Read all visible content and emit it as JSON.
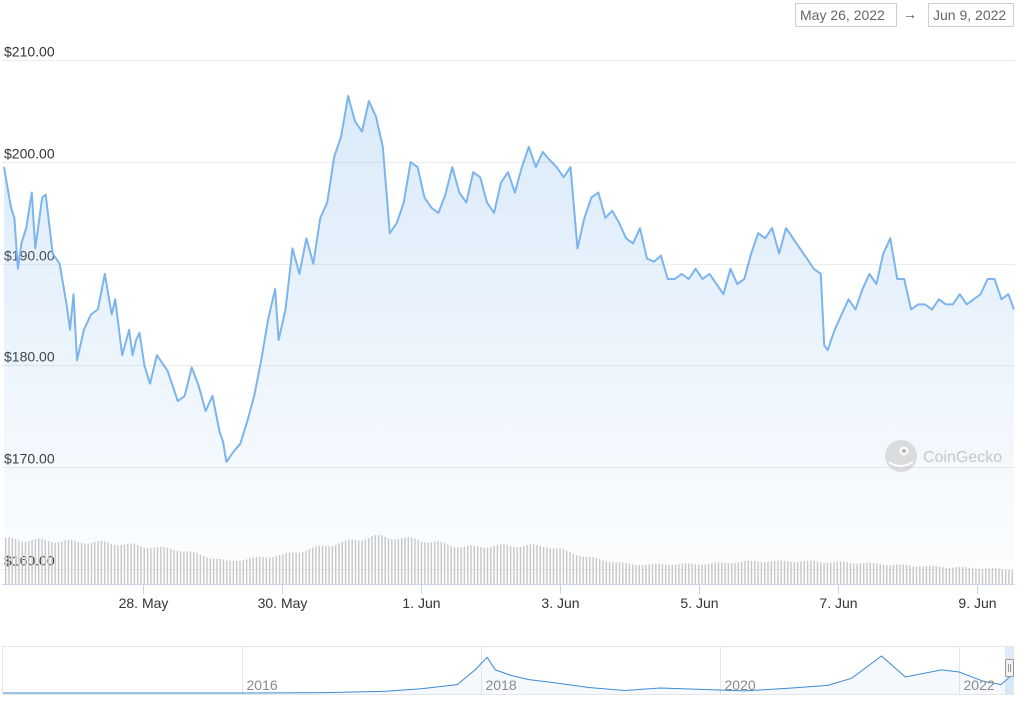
{
  "range": {
    "from": "May 26, 2022",
    "arrow": "→",
    "to": "Jun 9, 2022"
  },
  "watermark": "CoinGecko",
  "chart_data": {
    "type": "line",
    "series_color": "#7cb5ec",
    "y_ticks": [
      "$210.00",
      "$200.00",
      "$190.00",
      "$180.00",
      "$170.00",
      "$160.00"
    ],
    "y_tick_values": [
      210,
      200,
      190,
      180,
      170,
      160
    ],
    "ylim": [
      158.5,
      212
    ],
    "x_ticks": [
      "28. May",
      "30. May",
      "1. Jun",
      "3. Jun",
      "5. Jun",
      "7. Jun",
      "9. Jun"
    ],
    "x_tick_days": [
      2,
      4,
      6,
      8,
      10,
      12,
      14
    ],
    "x_range_days": [
      0.0,
      14.53
    ],
    "price_points": [
      [
        0.0,
        199.5
      ],
      [
        0.1,
        195.5
      ],
      [
        0.15,
        194.5
      ],
      [
        0.2,
        189.5
      ],
      [
        0.25,
        192.0
      ],
      [
        0.32,
        193.5
      ],
      [
        0.4,
        197.0
      ],
      [
        0.45,
        191.5
      ],
      [
        0.55,
        196.5
      ],
      [
        0.6,
        196.8
      ],
      [
        0.7,
        191.0
      ],
      [
        0.8,
        190.0
      ],
      [
        0.9,
        186.0
      ],
      [
        0.95,
        183.5
      ],
      [
        1.0,
        187.0
      ],
      [
        1.05,
        180.5
      ],
      [
        1.15,
        183.5
      ],
      [
        1.25,
        185.0
      ],
      [
        1.35,
        185.5
      ],
      [
        1.45,
        189.0
      ],
      [
        1.55,
        185.0
      ],
      [
        1.6,
        186.5
      ],
      [
        1.7,
        181.0
      ],
      [
        1.8,
        183.5
      ],
      [
        1.85,
        181.0
      ],
      [
        1.9,
        182.5
      ],
      [
        1.95,
        183.2
      ],
      [
        2.02,
        180.0
      ],
      [
        2.1,
        178.2
      ],
      [
        2.2,
        181.0
      ],
      [
        2.35,
        179.5
      ],
      [
        2.5,
        176.5
      ],
      [
        2.6,
        177.0
      ],
      [
        2.7,
        179.8
      ],
      [
        2.8,
        178.0
      ],
      [
        2.9,
        175.5
      ],
      [
        3.0,
        177.0
      ],
      [
        3.1,
        173.5
      ],
      [
        3.15,
        172.5
      ],
      [
        3.2,
        170.5
      ],
      [
        3.3,
        171.5
      ],
      [
        3.4,
        172.3
      ],
      [
        3.5,
        174.5
      ],
      [
        3.6,
        177.0
      ],
      [
        3.7,
        180.5
      ],
      [
        3.8,
        184.5
      ],
      [
        3.9,
        187.5
      ],
      [
        3.95,
        182.5
      ],
      [
        4.05,
        185.5
      ],
      [
        4.15,
        191.5
      ],
      [
        4.25,
        189.0
      ],
      [
        4.35,
        192.5
      ],
      [
        4.45,
        190.0
      ],
      [
        4.55,
        194.5
      ],
      [
        4.65,
        196.0
      ],
      [
        4.75,
        200.5
      ],
      [
        4.85,
        202.5
      ],
      [
        4.95,
        206.5
      ],
      [
        5.05,
        204.0
      ],
      [
        5.15,
        203.0
      ],
      [
        5.25,
        206.0
      ],
      [
        5.35,
        204.5
      ],
      [
        5.45,
        201.5
      ],
      [
        5.55,
        193.0
      ],
      [
        5.65,
        194.0
      ],
      [
        5.75,
        196.0
      ],
      [
        5.85,
        200.0
      ],
      [
        5.95,
        199.5
      ],
      [
        6.05,
        196.5
      ],
      [
        6.15,
        195.5
      ],
      [
        6.25,
        195.0
      ],
      [
        6.35,
        196.8
      ],
      [
        6.45,
        199.5
      ],
      [
        6.55,
        197.0
      ],
      [
        6.65,
        196.0
      ],
      [
        6.75,
        199.0
      ],
      [
        6.85,
        198.5
      ],
      [
        6.95,
        196.0
      ],
      [
        7.05,
        195.0
      ],
      [
        7.15,
        198.0
      ],
      [
        7.25,
        199.0
      ],
      [
        7.35,
        197.0
      ],
      [
        7.45,
        199.5
      ],
      [
        7.55,
        201.5
      ],
      [
        7.65,
        199.5
      ],
      [
        7.75,
        201.0
      ],
      [
        7.85,
        200.2
      ],
      [
        7.95,
        199.5
      ],
      [
        8.05,
        198.5
      ],
      [
        8.15,
        199.5
      ],
      [
        8.25,
        191.5
      ],
      [
        8.35,
        194.5
      ],
      [
        8.45,
        196.5
      ],
      [
        8.55,
        197.0
      ],
      [
        8.65,
        194.5
      ],
      [
        8.75,
        195.2
      ],
      [
        8.85,
        194.0
      ],
      [
        8.95,
        192.5
      ],
      [
        9.05,
        192.0
      ],
      [
        9.15,
        193.5
      ],
      [
        9.25,
        190.5
      ],
      [
        9.35,
        190.2
      ],
      [
        9.45,
        190.8
      ],
      [
        9.55,
        188.5
      ],
      [
        9.65,
        188.5
      ],
      [
        9.75,
        189.0
      ],
      [
        9.85,
        188.5
      ],
      [
        9.95,
        189.5
      ],
      [
        10.05,
        188.5
      ],
      [
        10.15,
        189.0
      ],
      [
        10.25,
        188.0
      ],
      [
        10.35,
        187.0
      ],
      [
        10.45,
        189.5
      ],
      [
        10.55,
        188.0
      ],
      [
        10.65,
        188.5
      ],
      [
        10.75,
        191.0
      ],
      [
        10.85,
        193.0
      ],
      [
        10.95,
        192.5
      ],
      [
        11.05,
        193.5
      ],
      [
        11.15,
        191.0
      ],
      [
        11.25,
        193.5
      ],
      [
        11.35,
        192.5
      ],
      [
        11.45,
        191.5
      ],
      [
        11.55,
        190.5
      ],
      [
        11.65,
        189.5
      ],
      [
        11.75,
        189.0
      ],
      [
        11.8,
        182.0
      ],
      [
        11.85,
        181.5
      ],
      [
        11.95,
        183.5
      ],
      [
        12.05,
        185.0
      ],
      [
        12.15,
        186.5
      ],
      [
        12.25,
        185.5
      ],
      [
        12.35,
        187.5
      ],
      [
        12.45,
        189.0
      ],
      [
        12.55,
        188.0
      ],
      [
        12.65,
        191.0
      ],
      [
        12.75,
        192.5
      ],
      [
        12.85,
        188.5
      ],
      [
        12.95,
        188.5
      ],
      [
        13.05,
        185.5
      ],
      [
        13.15,
        186.0
      ],
      [
        13.25,
        186.0
      ],
      [
        13.35,
        185.5
      ],
      [
        13.45,
        186.5
      ],
      [
        13.55,
        186.0
      ],
      [
        13.65,
        186.0
      ],
      [
        13.75,
        187.0
      ],
      [
        13.85,
        186.0
      ],
      [
        13.95,
        186.5
      ],
      [
        14.05,
        187.0
      ],
      [
        14.15,
        188.5
      ],
      [
        14.25,
        188.5
      ],
      [
        14.35,
        186.5
      ],
      [
        14.45,
        187.0
      ],
      [
        14.53,
        185.5
      ]
    ],
    "volume_level": {
      "comment_free": true,
      "points": [
        [
          0.0,
          0.85
        ],
        [
          1.5,
          0.78
        ],
        [
          2.5,
          0.65
        ],
        [
          3.2,
          0.43
        ],
        [
          4.0,
          0.55
        ],
        [
          4.6,
          0.72
        ],
        [
          5.3,
          0.9
        ],
        [
          5.9,
          0.85
        ],
        [
          6.6,
          0.7
        ],
        [
          7.2,
          0.73
        ],
        [
          7.8,
          0.72
        ],
        [
          8.4,
          0.5
        ],
        [
          9.0,
          0.37
        ],
        [
          10.0,
          0.38
        ],
        [
          10.8,
          0.43
        ],
        [
          11.5,
          0.43
        ],
        [
          12.3,
          0.4
        ],
        [
          13.0,
          0.35
        ],
        [
          14.0,
          0.3
        ],
        [
          14.53,
          0.27
        ]
      ]
    },
    "navigator": {
      "labels": [
        "2016",
        "2018",
        "2020",
        "2022"
      ],
      "label_years": [
        2016,
        2018,
        2020,
        2022
      ],
      "x_range_years": [
        2014.0,
        2022.45
      ],
      "points": [
        [
          2014.0,
          0.0
        ],
        [
          2016.0,
          0.0
        ],
        [
          2016.7,
          0.01
        ],
        [
          2017.2,
          0.04
        ],
        [
          2017.5,
          0.1
        ],
        [
          2017.8,
          0.2
        ],
        [
          2017.95,
          0.55
        ],
        [
          2018.05,
          0.85
        ],
        [
          2018.12,
          0.55
        ],
        [
          2018.25,
          0.42
        ],
        [
          2018.4,
          0.32
        ],
        [
          2018.6,
          0.25
        ],
        [
          2018.9,
          0.13
        ],
        [
          2019.2,
          0.06
        ],
        [
          2019.5,
          0.12
        ],
        [
          2019.9,
          0.08
        ],
        [
          2020.2,
          0.05
        ],
        [
          2020.6,
          0.12
        ],
        [
          2020.9,
          0.18
        ],
        [
          2021.1,
          0.35
        ],
        [
          2021.35,
          0.88
        ],
        [
          2021.55,
          0.38
        ],
        [
          2021.85,
          0.55
        ],
        [
          2022.0,
          0.5
        ],
        [
          2022.2,
          0.28
        ],
        [
          2022.35,
          0.2
        ],
        [
          2022.45,
          0.45
        ]
      ]
    }
  }
}
